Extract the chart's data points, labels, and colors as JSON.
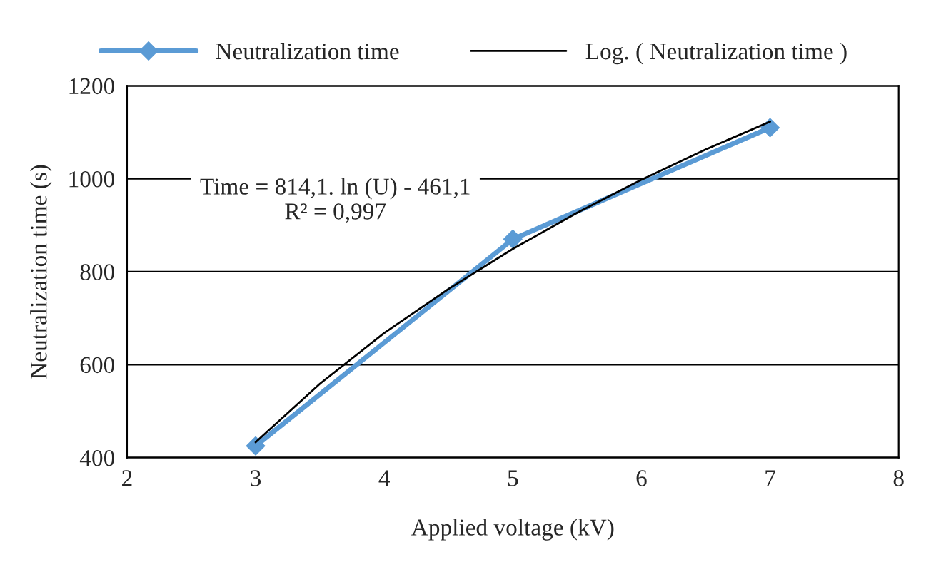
{
  "chart_data": {
    "type": "line",
    "xlabel": "Applied voltage (kV)",
    "ylabel": "Neutralization time (s)",
    "xlim": [
      2,
      8
    ],
    "xticks": [
      2,
      3,
      4,
      5,
      6,
      7,
      8
    ],
    "ylim": [
      400,
      1200
    ],
    "yticks": [
      400,
      600,
      800,
      1000,
      1200
    ],
    "grid": "y",
    "legend": "top",
    "marker": "diamond",
    "series": [
      {
        "name": "Neutralization time",
        "color": "#5b9bd5",
        "x": [
          3,
          5,
          7
        ],
        "values": [
          425,
          870,
          1110
        ]
      },
      {
        "name": "Log. ( Neutralization time )",
        "color": "#000000",
        "type": "line",
        "marker": "none",
        "x": [
          3,
          3.5,
          4,
          4.5,
          5,
          5.5,
          6,
          6.5,
          7
        ],
        "values": [
          433,
          559,
          668,
          763,
          849,
          927,
          998,
          1063,
          1123
        ]
      }
    ],
    "annotations": [
      "Time = 814,1. ln (U) - 461,1\nR² = 0,997"
    ]
  }
}
